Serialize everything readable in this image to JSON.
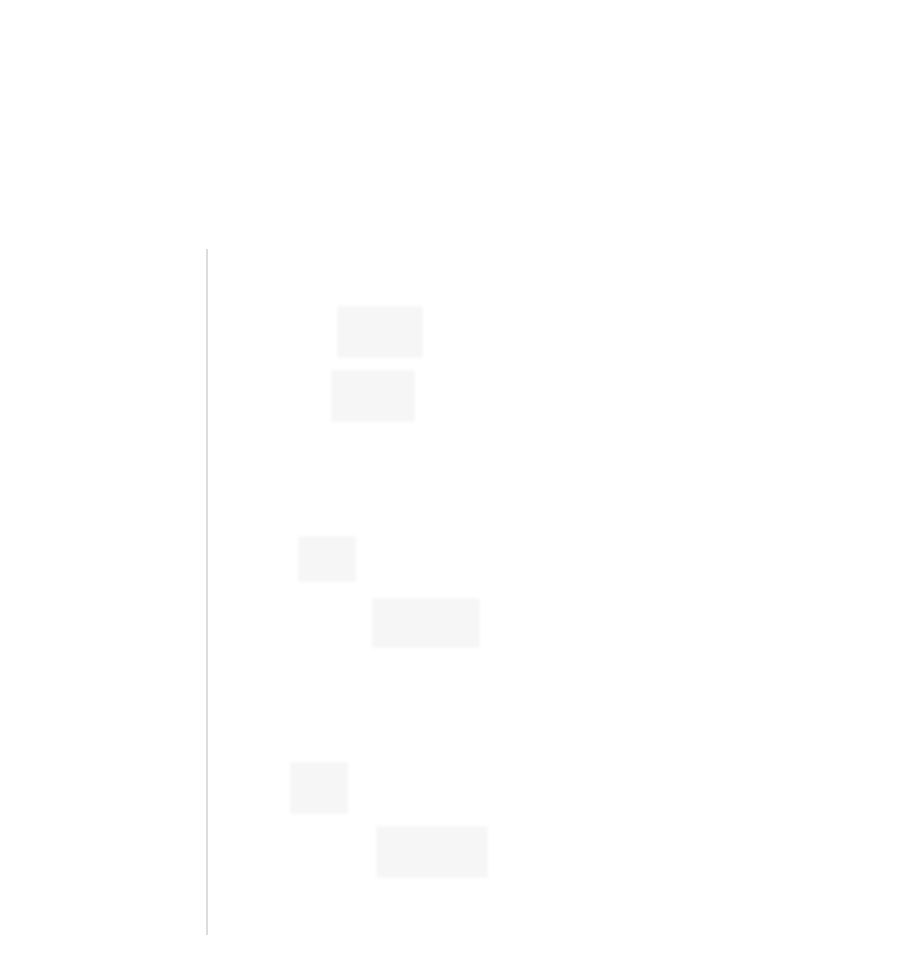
{
  "placeholders": {
    "count": 6,
    "fill_color": "#f6f6f6"
  },
  "divider": {
    "color": "#dcdcdc"
  }
}
